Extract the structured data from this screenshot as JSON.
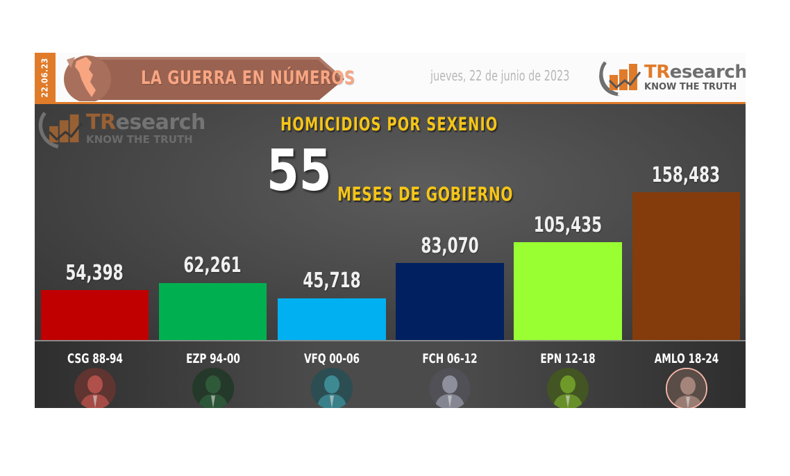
{
  "header": {
    "date_tab": "22.06.23",
    "banner_title": "LA GUERRA EN NÚMEROS",
    "date_text": "jueves, 22 de junio de 2023",
    "logo": {
      "brand_t": "TR",
      "brand_rest": "esearch",
      "tagline": "KNOW THE TRUTH"
    }
  },
  "watermark": {
    "brand_t": "TR",
    "brand_rest": "esearch",
    "tagline": "KNOW THE TRUTH"
  },
  "chart_header": {
    "title": "HOMICIDIOS  POR SEXENIO",
    "big_number": "55",
    "subtitle": "MESES DE GOBIERNO"
  },
  "colors": {
    "accent_orange": "#e07b2a",
    "title_yellow": "#f5c518",
    "banner_fill": "#9a6250",
    "banner_text": "#f8a582"
  },
  "bars": [
    {
      "label": "54,398",
      "president": "CSG 88-94",
      "color": "#c00000",
      "avatar_tint": "#b0504a"
    },
    {
      "label": "62,261",
      "president": "EZP 94-00",
      "color": "#00b050",
      "avatar_tint": "#2f5a3a"
    },
    {
      "label": "45,718",
      "president": "VFQ 00-06",
      "color": "#00b0f0",
      "avatar_tint": "#3d8a93"
    },
    {
      "label": "83,070",
      "president": "FCH 06-12",
      "color": "#002060",
      "avatar_tint": "#8d8f9c"
    },
    {
      "label": "105,435",
      "president": "EPN 12-18",
      "color": "#99ff33",
      "avatar_tint": "#6f9a2a"
    },
    {
      "label": "158,483",
      "president": "AMLO 18-24",
      "color": "#843c0c",
      "avatar_tint": "#a5857a"
    }
  ],
  "chart_data": {
    "type": "bar",
    "title": "HOMICIDIOS POR SEXENIO",
    "subtitle": "55 MESES DE GOBIERNO",
    "categories": [
      "CSG 88-94",
      "EZP 94-00",
      "VFQ 00-06",
      "FCH 06-12",
      "EPN 12-18",
      "AMLO 18-24"
    ],
    "values": [
      54398,
      62261,
      45718,
      83070,
      105435,
      158483
    ],
    "colors": [
      "#c00000",
      "#00b050",
      "#00b0f0",
      "#002060",
      "#99ff33",
      "#843c0c"
    ],
    "xlabel": "",
    "ylabel": "",
    "data_labels": true,
    "grid": false,
    "legend": "none"
  }
}
